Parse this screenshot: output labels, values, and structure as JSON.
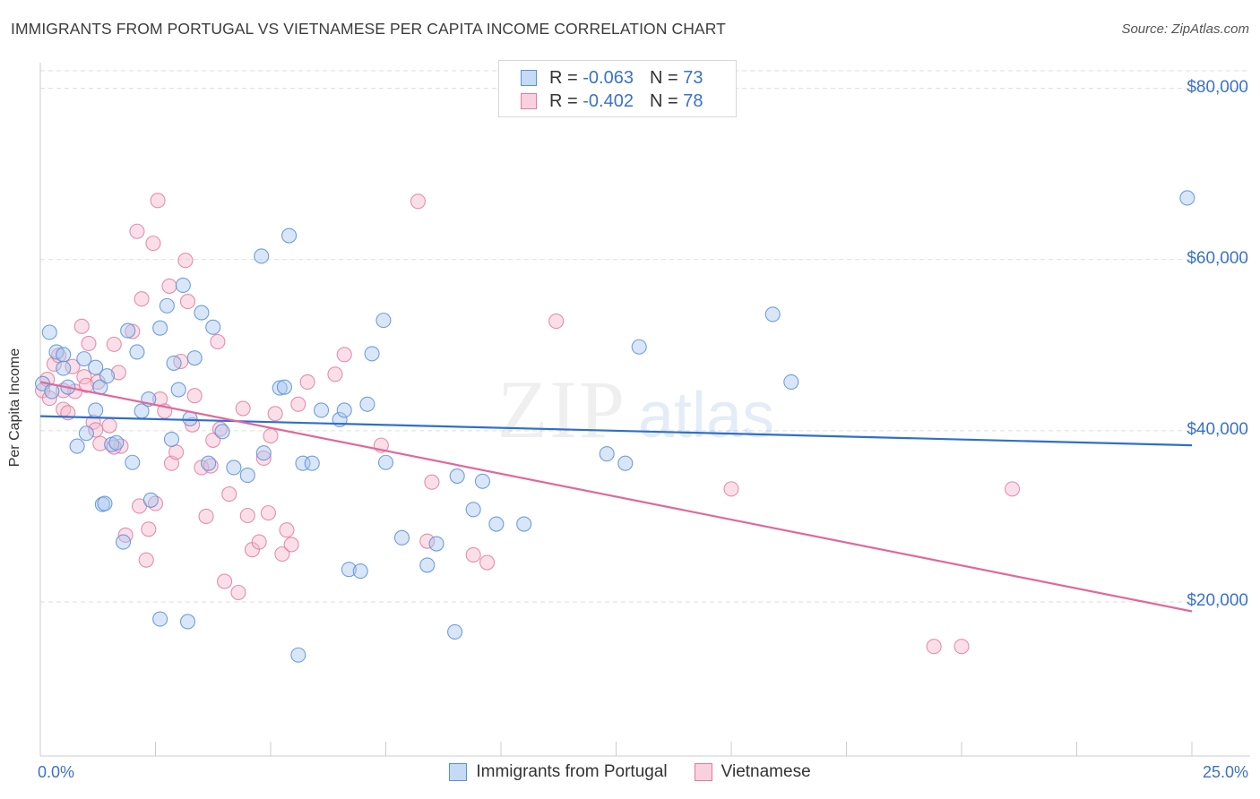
{
  "header": {
    "title": "IMMIGRANTS FROM PORTUGAL VS VIETNAMESE PER CAPITA INCOME CORRELATION CHART",
    "source": "Source: ZipAtlas.com"
  },
  "legend_top": {
    "rows": [
      {
        "r_label": "R = ",
        "r_value": "-0.063",
        "n_label": "N = ",
        "n_value": "73"
      },
      {
        "r_label": "R = ",
        "r_value": "-0.402",
        "n_label": "N = ",
        "n_value": "78"
      }
    ]
  },
  "watermark": {
    "zip": "ZIP",
    "atlas": "atlas"
  },
  "colors": {
    "blue_fill": "#a9c8f0",
    "blue_stroke": "#5a8fd6",
    "blue_line": "#2f6fcc",
    "pink_fill": "#f6b8cb",
    "pink_stroke": "#e07ca0",
    "pink_line": "#e0689a",
    "tick_text": "#3a72c8"
  },
  "chart_data": {
    "type": "scatter",
    "title": "IMMIGRANTS FROM PORTUGAL VS VIETNAMESE PER CAPITA INCOME CORRELATION CHART",
    "xlabel": "",
    "ylabel": "Per Capita Income",
    "xlim": [
      0,
      25
    ],
    "ylim": [
      2000,
      83000
    ],
    "x_tick_labels": [
      {
        "x": 0,
        "label": "0.0%"
      },
      {
        "x": 25,
        "label": "25.0%"
      }
    ],
    "y_ticks": [
      {
        "y": 20000,
        "label": "$20,000"
      },
      {
        "y": 40000,
        "label": "$40,000"
      },
      {
        "y": 60000,
        "label": "$60,000"
      },
      {
        "y": 80000,
        "label": "$80,000"
      }
    ],
    "grid": "horizontal dashed",
    "legend_position": "bottom",
    "series": [
      {
        "name": "Immigrants from Portugal",
        "color": "blue",
        "trend": {
          "x": [
            0,
            25
          ],
          "y": [
            41700,
            38300
          ]
        },
        "points": [
          [
            0.05,
            45500
          ],
          [
            0.2,
            51500
          ],
          [
            0.35,
            49200
          ],
          [
            0.5,
            47300
          ],
          [
            0.6,
            45100
          ],
          [
            0.95,
            48400
          ],
          [
            1.2,
            47400
          ],
          [
            0.8,
            38200
          ],
          [
            1.3,
            45100
          ],
          [
            1.45,
            46400
          ],
          [
            1.0,
            39700
          ],
          [
            1.2,
            42400
          ],
          [
            1.35,
            31400
          ],
          [
            1.4,
            31500
          ],
          [
            1.55,
            38400
          ],
          [
            1.65,
            38600
          ],
          [
            1.9,
            51700
          ],
          [
            2.0,
            36300
          ],
          [
            2.1,
            49200
          ],
          [
            2.2,
            42300
          ],
          [
            2.35,
            43700
          ],
          [
            2.4,
            31900
          ],
          [
            2.6,
            52000
          ],
          [
            2.75,
            54600
          ],
          [
            2.85,
            39000
          ],
          [
            2.9,
            47900
          ],
          [
            3.0,
            44800
          ],
          [
            3.1,
            57000
          ],
          [
            3.25,
            41400
          ],
          [
            3.35,
            48500
          ],
          [
            3.5,
            53800
          ],
          [
            3.65,
            36200
          ],
          [
            3.75,
            52100
          ],
          [
            3.95,
            39900
          ],
          [
            4.2,
            35700
          ],
          [
            4.5,
            34800
          ],
          [
            4.8,
            60400
          ],
          [
            4.85,
            37400
          ],
          [
            5.2,
            45000
          ],
          [
            5.3,
            45100
          ],
          [
            5.4,
            62800
          ],
          [
            5.7,
            36200
          ],
          [
            5.9,
            36200
          ],
          [
            6.1,
            42400
          ],
          [
            6.5,
            41300
          ],
          [
            6.6,
            42400
          ],
          [
            6.7,
            23800
          ],
          [
            6.95,
            23600
          ],
          [
            7.1,
            43100
          ],
          [
            7.2,
            49000
          ],
          [
            7.45,
            52900
          ],
          [
            7.5,
            36300
          ],
          [
            7.85,
            27500
          ],
          [
            8.4,
            24300
          ],
          [
            8.6,
            26800
          ],
          [
            9.05,
            34700
          ],
          [
            9.0,
            16500
          ],
          [
            9.4,
            30800
          ],
          [
            9.6,
            34100
          ],
          [
            9.9,
            29100
          ],
          [
            10.5,
            29100
          ],
          [
            12.3,
            37300
          ],
          [
            12.7,
            36200
          ],
          [
            13.0,
            49800
          ],
          [
            15.9,
            53600
          ],
          [
            16.3,
            45700
          ],
          [
            1.8,
            27000
          ],
          [
            3.2,
            17700
          ],
          [
            2.6,
            18000
          ],
          [
            5.6,
            13800
          ],
          [
            0.5,
            48900
          ],
          [
            0.25,
            44600
          ],
          [
            24.9,
            67200
          ]
        ]
      },
      {
        "name": "Vietnamese",
        "color": "pink",
        "trend": {
          "x": [
            0,
            25
          ],
          "y": [
            45700,
            18900
          ]
        },
        "points": [
          [
            0.05,
            44700
          ],
          [
            0.15,
            46000
          ],
          [
            0.3,
            47800
          ],
          [
            0.4,
            48800
          ],
          [
            0.5,
            42500
          ],
          [
            0.6,
            42100
          ],
          [
            0.7,
            47500
          ],
          [
            0.75,
            44600
          ],
          [
            0.9,
            52200
          ],
          [
            0.95,
            46300
          ],
          [
            1.05,
            50200
          ],
          [
            1.15,
            41000
          ],
          [
            1.2,
            40100
          ],
          [
            1.25,
            45700
          ],
          [
            1.3,
            38500
          ],
          [
            1.5,
            40600
          ],
          [
            1.6,
            50100
          ],
          [
            1.7,
            46800
          ],
          [
            1.75,
            38200
          ],
          [
            1.85,
            27800
          ],
          [
            2.0,
            51600
          ],
          [
            2.1,
            63300
          ],
          [
            2.15,
            31200
          ],
          [
            2.2,
            55400
          ],
          [
            2.3,
            24900
          ],
          [
            2.35,
            28500
          ],
          [
            2.45,
            61900
          ],
          [
            2.55,
            66900
          ],
          [
            2.6,
            43700
          ],
          [
            2.7,
            42300
          ],
          [
            2.8,
            56900
          ],
          [
            2.85,
            36200
          ],
          [
            2.95,
            37500
          ],
          [
            3.05,
            48100
          ],
          [
            3.15,
            59900
          ],
          [
            3.2,
            55100
          ],
          [
            3.35,
            44100
          ],
          [
            3.5,
            35700
          ],
          [
            3.6,
            30000
          ],
          [
            3.7,
            35900
          ],
          [
            3.75,
            38900
          ],
          [
            3.85,
            50400
          ],
          [
            4.0,
            22400
          ],
          [
            4.1,
            32600
          ],
          [
            4.3,
            21100
          ],
          [
            4.4,
            42600
          ],
          [
            4.5,
            30100
          ],
          [
            4.6,
            26100
          ],
          [
            4.75,
            27000
          ],
          [
            4.85,
            36800
          ],
          [
            4.95,
            30400
          ],
          [
            5.0,
            39400
          ],
          [
            5.1,
            42000
          ],
          [
            5.25,
            25600
          ],
          [
            5.35,
            28400
          ],
          [
            5.45,
            26700
          ],
          [
            5.6,
            43100
          ],
          [
            5.8,
            45700
          ],
          [
            6.4,
            46600
          ],
          [
            6.6,
            48900
          ],
          [
            7.4,
            38300
          ],
          [
            8.2,
            66800
          ],
          [
            8.4,
            27100
          ],
          [
            8.5,
            34000
          ],
          [
            9.4,
            25500
          ],
          [
            9.7,
            24600
          ],
          [
            11.2,
            52800
          ],
          [
            15.0,
            33200
          ],
          [
            19.4,
            14800
          ],
          [
            20.0,
            14800
          ],
          [
            2.5,
            31500
          ],
          [
            1.6,
            38100
          ],
          [
            3.3,
            40700
          ],
          [
            3.9,
            40200
          ],
          [
            0.2,
            43800
          ],
          [
            0.5,
            44700
          ],
          [
            1.0,
            45300
          ],
          [
            21.1,
            33200
          ]
        ]
      }
    ]
  }
}
